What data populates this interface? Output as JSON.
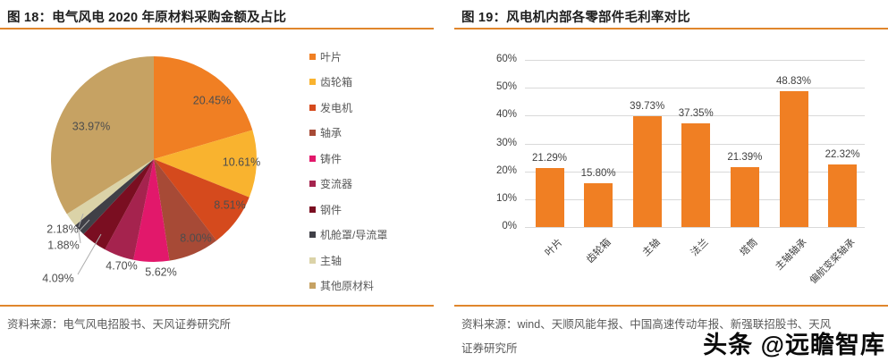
{
  "panels": [
    {
      "title": "图 18：电气风电 2020 年原材料采购金额及占比",
      "source_lines": [
        "资料来源：电气风电招股书、天风证券研究所"
      ]
    },
    {
      "title": "图 19：风电机内部各零部件毛利率对比",
      "source_lines": [
        "资料来源：wind、天顺风能年报、中国高速传动年报、新强联招股书、天风",
        "证券研究所"
      ]
    }
  ],
  "chart_data": [
    {
      "type": "pie",
      "title": "电气风电2020年原材料采购金额及占比",
      "labels": [
        "叶片",
        "齿轮箱",
        "发电机",
        "轴承",
        "铸件",
        "变流器",
        "钢件",
        "机舱罩/导流罩",
        "主轴",
        "其他原材料"
      ],
      "values": [
        20.45,
        10.61,
        8.51,
        8.0,
        5.62,
        4.7,
        4.09,
        1.88,
        2.18,
        33.97
      ],
      "value_labels": [
        "20.45%",
        "10.61%",
        "8.51%",
        "8.00%",
        "5.62%",
        "4.70%",
        "4.09%",
        "1.88%",
        "2.18%",
        "33.97%"
      ],
      "colors": [
        "#F07F23",
        "#F9B32F",
        "#D54A1D",
        "#A74A36",
        "#E2186B",
        "#A5234E",
        "#7A0E21",
        "#404047",
        "#DBD3A8",
        "#C6A263"
      ],
      "start_angle_deg": 0,
      "direction": "clockwise",
      "legend_position": "right"
    },
    {
      "type": "bar",
      "categories": [
        "叶片",
        "齿轮箱",
        "主轴",
        "法兰",
        "塔筒",
        "主轴轴承",
        "偏航变桨轴承"
      ],
      "values": [
        21.29,
        15.8,
        39.73,
        37.35,
        21.39,
        48.83,
        22.32
      ],
      "value_labels": [
        "21.29%",
        "15.80%",
        "39.73%",
        "37.35%",
        "21.39%",
        "48.83%",
        "22.32%"
      ],
      "y_ticks": [
        "0%",
        "10%",
        "20%",
        "30%",
        "40%",
        "50%",
        "60%"
      ],
      "ylim": [
        0,
        60
      ],
      "grid": true,
      "bar_color": "#F07F23",
      "grid_color": "#d9d9d9"
    }
  ],
  "watermark": "头条 @远瞻智库",
  "colors": {
    "accent_orange": "#e0862c",
    "title_text": "#1f1f1f",
    "body_text": "#595959",
    "tick_text": "#3f3f3f",
    "leader_line": "#adadad",
    "background": "#ffffff",
    "watermark_text": "#0a0a0a"
  }
}
